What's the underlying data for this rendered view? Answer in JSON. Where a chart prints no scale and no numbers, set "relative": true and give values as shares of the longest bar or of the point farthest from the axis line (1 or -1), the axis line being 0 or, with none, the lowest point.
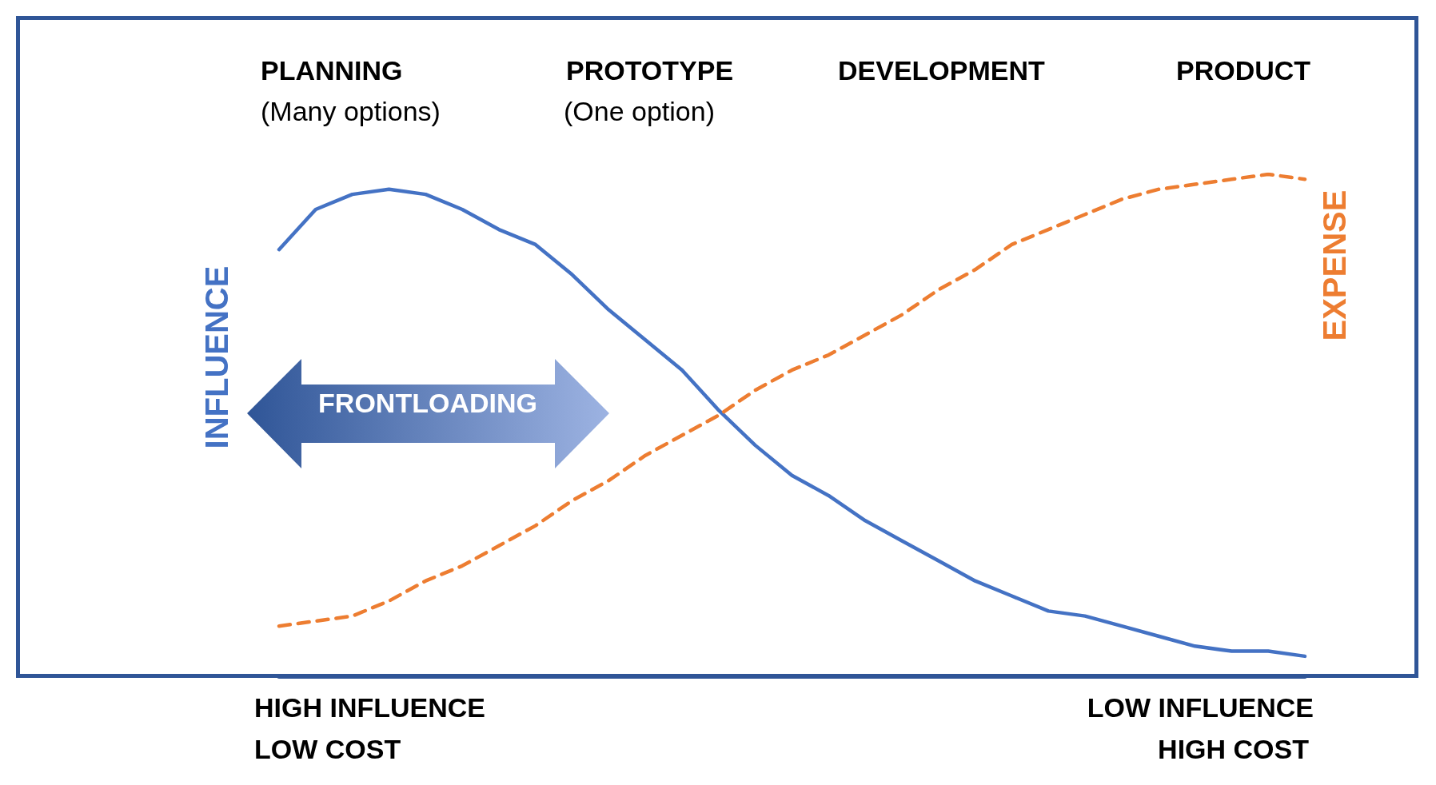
{
  "chart_data": {
    "type": "line",
    "relative": true,
    "marker": "none",
    "grid": false,
    "categories": [
      null,
      null,
      null,
      null,
      null,
      null,
      null,
      null,
      null,
      null,
      null,
      null,
      null,
      null,
      null,
      null,
      null,
      null,
      null,
      null,
      null,
      null,
      null,
      null,
      null,
      null,
      null,
      null,
      null
    ],
    "series": [
      {
        "name": "INFLUENCE",
        "color": "#4472c4",
        "line_style": "solid",
        "values": [
          0.85,
          0.93,
          0.96,
          0.97,
          0.96,
          0.93,
          0.89,
          0.86,
          0.8,
          0.73,
          0.67,
          0.61,
          0.53,
          0.46,
          0.4,
          0.36,
          0.31,
          0.27,
          0.23,
          0.19,
          0.16,
          0.13,
          0.12,
          0.1,
          0.08,
          0.06,
          0.05,
          0.05,
          0.04
        ]
      },
      {
        "name": "EXPENSE",
        "color": "#ed7d31",
        "line_style": "dashed",
        "values": [
          0.1,
          0.11,
          0.12,
          0.15,
          0.19,
          0.22,
          0.26,
          0.3,
          0.35,
          0.39,
          0.44,
          0.48,
          0.52,
          0.57,
          0.61,
          0.64,
          0.68,
          0.72,
          0.77,
          0.81,
          0.86,
          0.89,
          0.92,
          0.95,
          0.97,
          0.98,
          0.99,
          1,
          0.99
        ]
      }
    ],
    "annotations": [
      "PLANNING",
      "(Many options)",
      "PROTOTYPE",
      "(One option)",
      "DEVELOPMENT",
      "PRODUCT",
      "FRONTLOADING",
      "HIGH INFLUENCE",
      "LOW COST",
      "LOW INFLUENCE",
      "HIGH COST"
    ]
  }
}
